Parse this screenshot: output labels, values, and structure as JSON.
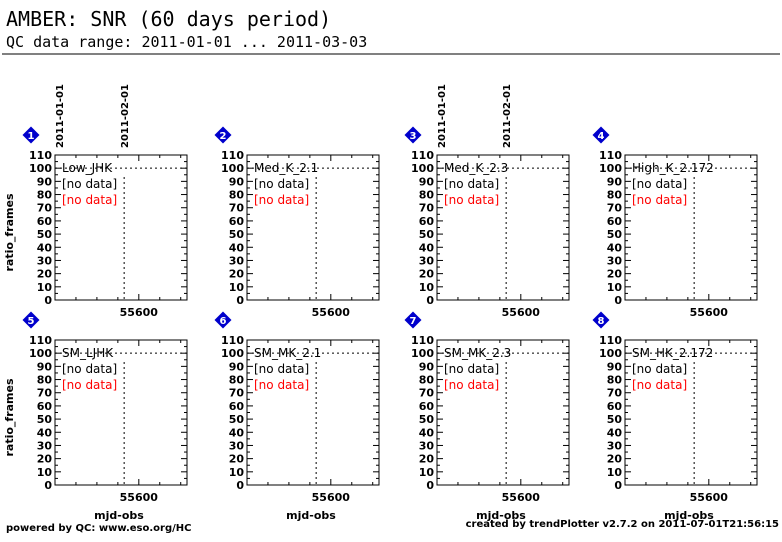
{
  "title": "AMBER: SNR (60 days period)",
  "subtitle": "QC data range: 2011-01-01 ... 2011-03-03",
  "footer_left": "powered by QC: www.eso.org/HC",
  "footer_right": "created by trendPlotter v2.7.2 on 2011-07-01T21:56:15",
  "colors": {
    "axis": "#000000",
    "marker": "#0000cc",
    "no_data_alt": "#ff0000"
  },
  "chart_data": {
    "type": "scatter",
    "ylabel": "ratio_frames",
    "xlabel": "mjd-obs",
    "ylim": [
      0,
      110
    ],
    "xlim": [
      55560,
      55623
    ],
    "yticks": [
      0,
      10,
      20,
      30,
      40,
      50,
      60,
      70,
      80,
      90,
      100,
      110
    ],
    "xticks": [
      55600
    ],
    "date_markers": [
      {
        "label": "2011-01-01",
        "mjd": 55562
      },
      {
        "label": "2011-02-01",
        "mjd": 55593
      }
    ],
    "reference_line_y": 100,
    "panels": [
      {
        "number": "1",
        "label": "Low_JHK",
        "status": [
          "[no data]",
          "[no data]"
        ],
        "points": []
      },
      {
        "number": "2",
        "label": "Med_K_2.1",
        "status": [
          "[no data]",
          "[no data]"
        ],
        "points": []
      },
      {
        "number": "3",
        "label": "Med_K_2.3",
        "status": [
          "[no data]",
          "[no data]"
        ],
        "points": []
      },
      {
        "number": "4",
        "label": "High_K_2.172",
        "status": [
          "[no data]",
          "[no data]"
        ],
        "points": []
      },
      {
        "number": "5",
        "label": "SM_LJHK",
        "status": [
          "[no data]",
          "[no data]"
        ],
        "points": []
      },
      {
        "number": "6",
        "label": "SM_MK_2.1",
        "status": [
          "[no data]",
          "[no data]"
        ],
        "points": []
      },
      {
        "number": "7",
        "label": "SM_MK_2.3",
        "status": [
          "[no data]",
          "[no data]"
        ],
        "points": []
      },
      {
        "number": "8",
        "label": "SM_HK_2.172",
        "status": [
          "[no data]",
          "[no data]"
        ],
        "points": []
      }
    ]
  }
}
